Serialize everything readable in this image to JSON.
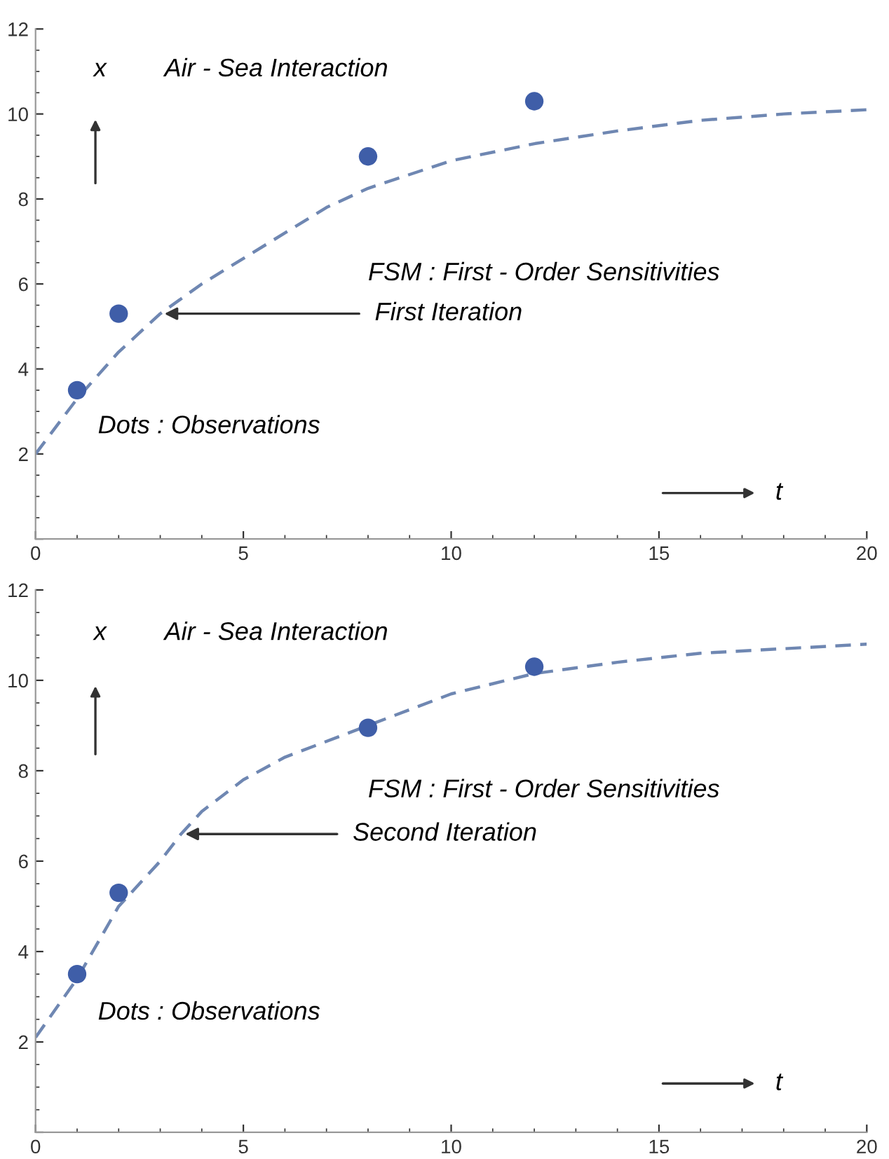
{
  "chart_data": [
    {
      "type": "scatter",
      "xlim": [
        0,
        20
      ],
      "ylim": [
        0,
        12
      ],
      "xticks": [
        0,
        5,
        10,
        15,
        20
      ],
      "yticks": [
        {
          "value": 0,
          "label": null
        },
        2,
        4,
        6,
        8,
        10,
        12
      ],
      "grid": false,
      "legend": false,
      "annotations": [
        "x",
        "Air - Sea Interaction",
        "FSM : First - Order Sensitivities",
        {
          "text": "First Iteration",
          "x": 3.1,
          "y": 5.3
        },
        "Dots : Observations",
        "t"
      ],
      "series": [
        {
          "color": "#3f5ea8",
          "marker": "circle",
          "x": [
            1,
            2,
            8,
            12
          ],
          "values": [
            3.5,
            5.3,
            9.0,
            10.3
          ]
        },
        {
          "type": "line",
          "color": "#6f87b2",
          "line_style": "dashed",
          "marker": "none",
          "x": [
            0,
            1,
            2,
            3,
            4,
            5,
            6,
            7,
            8,
            10,
            12,
            14,
            16,
            18,
            20
          ],
          "values": [
            2.0,
            3.3,
            4.4,
            5.3,
            6.0,
            6.6,
            7.2,
            7.8,
            8.25,
            8.9,
            9.3,
            9.6,
            9.85,
            10.0,
            10.1
          ]
        }
      ]
    },
    {
      "type": "scatter",
      "xlim": [
        0,
        20
      ],
      "ylim": [
        0,
        12
      ],
      "xticks": [
        0,
        5,
        10,
        15,
        20
      ],
      "yticks": [
        {
          "value": 0,
          "label": null
        },
        2,
        4,
        6,
        8,
        10,
        12
      ],
      "grid": false,
      "legend": false,
      "annotations": [
        "x",
        "Air - Sea Interaction",
        "FSM : First - Order Sensitivities",
        {
          "text": "Second Iteration",
          "x": 3.6,
          "y": 6.6
        },
        "Dots : Observations",
        "t"
      ],
      "series": [
        {
          "color": "#3f5ea8",
          "marker": "circle",
          "x": [
            1,
            2,
            8,
            12
          ],
          "values": [
            3.5,
            5.3,
            8.95,
            10.3
          ]
        },
        {
          "type": "line",
          "color": "#6f87b2",
          "line_style": "dashed",
          "marker": "none",
          "x": [
            0,
            1,
            2,
            3,
            3.5,
            4,
            5,
            6,
            8,
            10,
            12,
            14,
            16,
            18,
            20
          ],
          "values": [
            2.1,
            3.4,
            5.0,
            6.0,
            6.6,
            7.1,
            7.8,
            8.3,
            9.0,
            9.7,
            10.15,
            10.4,
            10.6,
            10.7,
            10.8
          ]
        }
      ]
    }
  ]
}
